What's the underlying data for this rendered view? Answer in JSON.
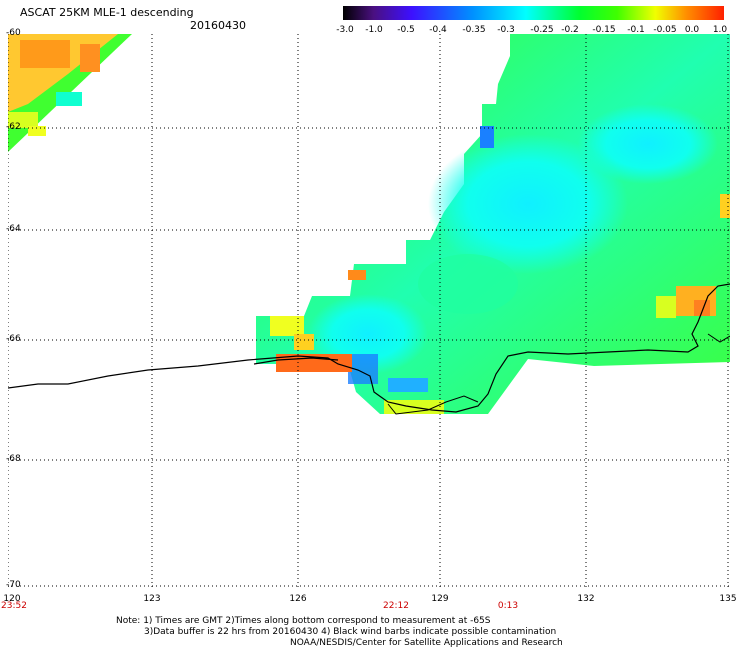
{
  "header": {
    "title": "ASCAT 25KM MLE-1 descending",
    "date": "20160430"
  },
  "colorbar": {
    "labels": [
      "-3.0",
      "-1.0",
      "-0.5",
      "-0.4",
      "-0.35",
      "-0.3",
      "-0.25",
      "-0.2",
      "-0.15",
      "-0.1",
      "-0.05",
      "0.0",
      "1.0"
    ]
  },
  "map": {
    "lat_labels": [
      "-60",
      "-62",
      "-64",
      "-66",
      "-68",
      "-70"
    ],
    "lon_labels": [
      "120",
      "123",
      "126",
      "129",
      "132",
      "135"
    ],
    "time_labels": [
      "23:52",
      "22:12",
      "0:13"
    ],
    "colors": {
      "orange": "#ff9a1a",
      "yellow": "#e8ff1a",
      "green": "#2eff2e",
      "cyan": "#10ffee",
      "blue": "#1a80ff",
      "coast": "#000000"
    }
  },
  "notes": {
    "line1": "Note: 1) Times are GMT 2)Times along bottom correspond to measurement at -65S",
    "line2": "3)Data buffer is 22 hrs from 20160430 4) Black wind barbs indicate possible contamination",
    "line3": "NOAA/NESDIS/Center for Satellite Applications and Research"
  }
}
